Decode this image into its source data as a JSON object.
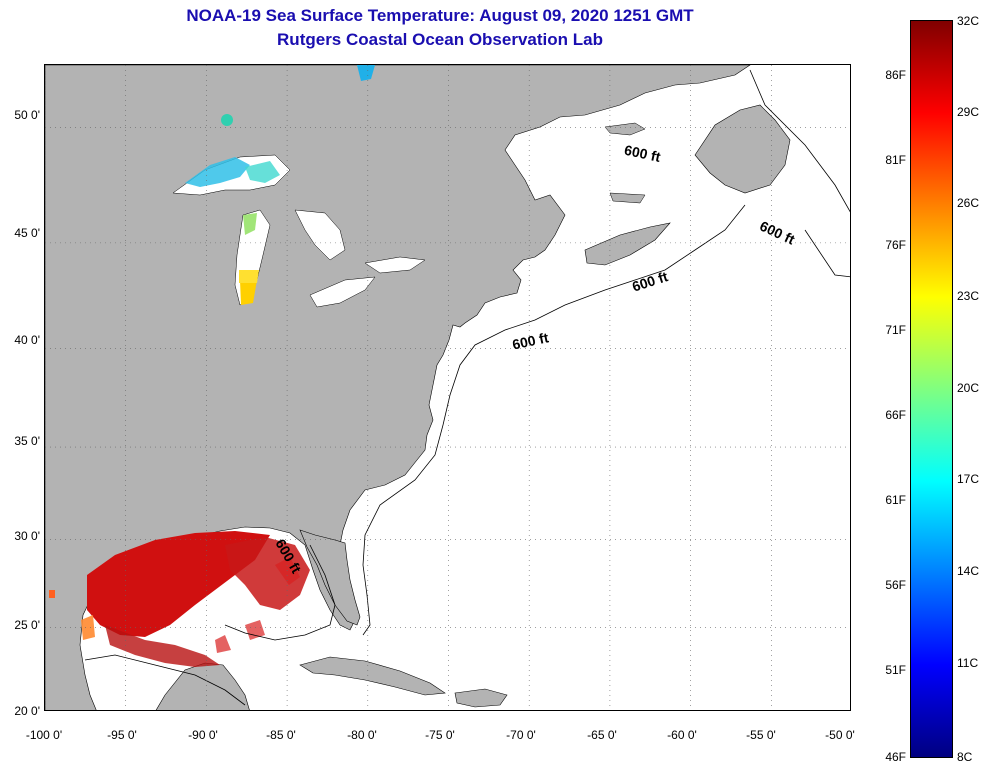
{
  "title": {
    "line1": "NOAA-19 Sea Surface Temperature:  August 09, 2020 1251 GMT",
    "line2": "Rutgers Coastal Ocean Observation Lab"
  },
  "map": {
    "land_color": "#b3b3b3",
    "water_color": "#ffffff",
    "grid_color": "#555555",
    "lon_range": [
      -100,
      -50
    ],
    "lat_range": [
      20,
      52.5
    ],
    "lat_labels": [
      "50 0'",
      "45 0'",
      "40 0'",
      "35 0'",
      "30 0'",
      "25 0'",
      "20 0'"
    ],
    "lat_values": [
      50,
      45,
      40,
      35,
      30,
      25,
      20
    ],
    "lon_labels": [
      "-100 0'",
      "-95 0'",
      "-90 0'",
      "-85 0'",
      "-80 0'",
      "-75 0'",
      "-70 0'",
      "-65 0'",
      "-60 0'",
      "-55 0'",
      "-50 0'"
    ],
    "lon_values": [
      -100,
      -95,
      -90,
      -85,
      -80,
      -75,
      -70,
      -65,
      -60,
      -55,
      -50
    ],
    "isobath_label": "600 ft",
    "isobath_annotations": [
      "600 ft",
      "600 ft",
      "600 ft",
      "600 ft",
      "600 ft"
    ]
  },
  "colorbar": {
    "fahrenheit_labels": [
      "86F",
      "81F",
      "76F",
      "71F",
      "66F",
      "61F",
      "56F",
      "51F",
      "46F"
    ],
    "celsius_labels": [
      "32C",
      "29C",
      "26C",
      "23C",
      "20C",
      "17C",
      "14C",
      "11C",
      "8C"
    ],
    "colors": [
      "#800000",
      "#ff0000",
      "#ff8000",
      "#ffff00",
      "#80ff80",
      "#00ffff",
      "#0080ff",
      "#0000ff",
      "#000080"
    ]
  }
}
